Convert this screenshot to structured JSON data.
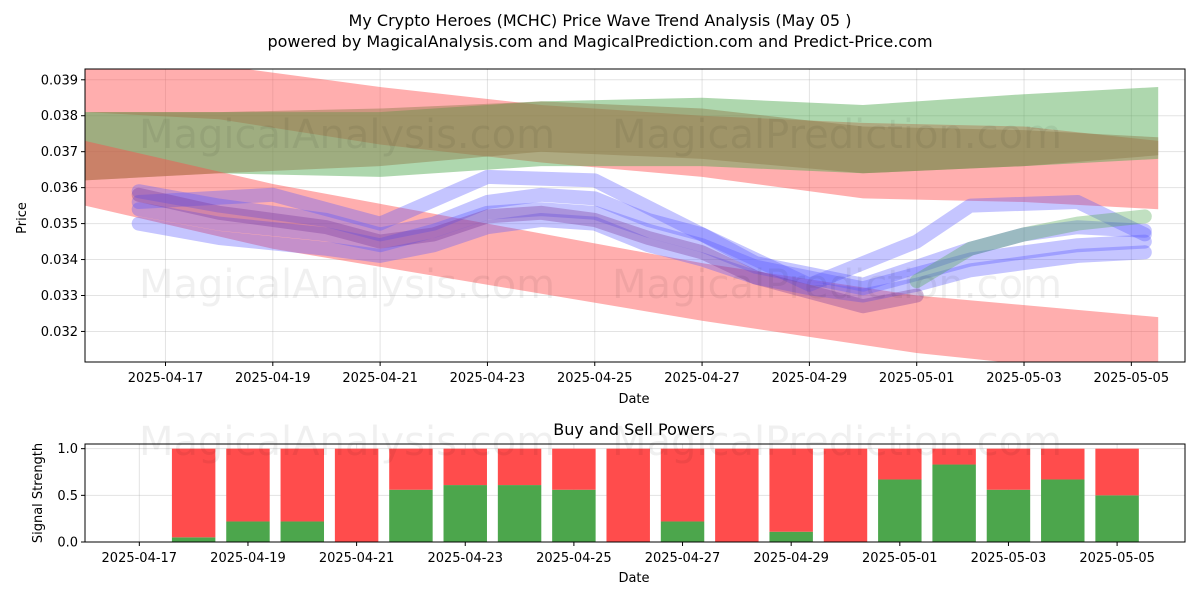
{
  "title_line1": "My Crypto Heroes (MCHC) Price Wave Trend Analysis (May 05 )",
  "title_line2": "powered by MagicalAnalysis.com and MagicalPrediction.com and Predict-Price.com",
  "watermarks": [
    "MagicalAnalysis.com",
    "MagicalPrediction.com"
  ],
  "colors": {
    "red": "#ff4c4c",
    "green": "#4ca64c",
    "blue": "#5a5aff",
    "purple": "#7a3a9a",
    "olive": "#8e7a4a"
  },
  "chart_data": [
    {
      "type": "line",
      "xlabel": "Date",
      "ylabel": "Price",
      "ylim": [
        0.03115,
        0.0393
      ],
      "xlim": [
        "2025-04-15T12:00",
        "2025-05-06T00:00"
      ],
      "yticks": [
        "0.032",
        "0.033",
        "0.034",
        "0.035",
        "0.036",
        "0.037",
        "0.038",
        "0.039"
      ],
      "xticks": [
        "2025-04-17",
        "2025-04-19",
        "2025-04-21",
        "2025-04-23",
        "2025-04-25",
        "2025-04-27",
        "2025-04-29",
        "2025-05-01",
        "2025-05-03",
        "2025-05-05"
      ],
      "grid": true,
      "bands": [
        {
          "color": "red",
          "x": [
            "2025-04-15T12:00",
            "2025-04-18",
            "2025-04-21",
            "2025-04-24",
            "2025-04-27",
            "2025-04-30",
            "2025-05-03",
            "2025-05-05T12:00"
          ],
          "upper": [
            0.0393,
            0.0394,
            0.0388,
            0.0383,
            0.038,
            0.0378,
            0.0377,
            0.0373
          ],
          "lower": [
            0.0381,
            0.0379,
            0.0372,
            0.0367,
            0.0363,
            0.0357,
            0.0356,
            0.0354
          ]
        },
        {
          "color": "green",
          "x": [
            "2025-04-15T12:00",
            "2025-04-18",
            "2025-04-21",
            "2025-04-24",
            "2025-04-27",
            "2025-04-30",
            "2025-05-03",
            "2025-05-05T12:00"
          ],
          "upper": [
            0.0381,
            0.0381,
            0.0381,
            0.0384,
            0.0385,
            0.0383,
            0.0386,
            0.0388
          ],
          "lower": [
            0.0362,
            0.0364,
            0.0363,
            0.0366,
            0.0366,
            0.0364,
            0.0366,
            0.0368
          ]
        },
        {
          "color": "olive",
          "x": [
            "2025-04-15T12:00",
            "2025-04-18",
            "2025-04-21",
            "2025-04-24",
            "2025-04-27",
            "2025-04-30",
            "2025-05-03",
            "2025-05-05T12:00"
          ],
          "upper": [
            0.0381,
            0.0381,
            0.0382,
            0.0384,
            0.0382,
            0.0377,
            0.0376,
            0.0374
          ],
          "lower": [
            0.0362,
            0.0364,
            0.0366,
            0.037,
            0.0368,
            0.0364,
            0.0366,
            0.0369
          ]
        },
        {
          "color": "red",
          "x": [
            "2025-04-15T12:00",
            "2025-04-19",
            "2025-04-23",
            "2025-04-27",
            "2025-05-01",
            "2025-05-05T12:00"
          ],
          "upper": [
            0.0373,
            0.0361,
            0.035,
            0.0339,
            0.033,
            0.0324
          ],
          "lower": [
            0.0355,
            0.0343,
            0.0333,
            0.0323,
            0.0314,
            0.0307
          ]
        }
      ],
      "series": [
        {
          "color": "blue",
          "x": [
            "2025-04-16T12:00",
            "2025-04-18",
            "2025-04-20",
            "2025-04-21",
            "2025-04-22",
            "2025-04-23",
            "2025-04-24",
            "2025-04-25",
            "2025-04-26",
            "2025-04-27",
            "2025-04-28",
            "2025-04-29",
            "2025-04-30",
            "2025-05-01",
            "2025-05-02",
            "2025-05-03",
            "2025-05-04",
            "2025-05-05T06:00"
          ],
          "y": [
            0.0354,
            0.035,
            0.0347,
            0.0344,
            0.0348,
            0.0353,
            0.0354,
            0.0353,
            0.0348,
            0.0344,
            0.0338,
            0.0335,
            0.0332,
            0.0336,
            0.034,
            0.0342,
            0.0344,
            0.0345
          ]
        },
        {
          "color": "blue",
          "x": [
            "2025-04-16T12:00",
            "2025-04-18",
            "2025-04-20",
            "2025-04-21",
            "2025-04-22",
            "2025-04-23",
            "2025-04-24",
            "2025-04-25",
            "2025-04-26",
            "2025-04-27",
            "2025-04-28",
            "2025-04-29",
            "2025-04-30",
            "2025-05-01",
            "2025-05-02",
            "2025-05-03",
            "2025-05-04",
            "2025-05-05T06:00"
          ],
          "y": [
            0.0359,
            0.0355,
            0.0351,
            0.0347,
            0.035,
            0.0356,
            0.0358,
            0.0357,
            0.0351,
            0.0347,
            0.0339,
            0.0336,
            0.0333,
            0.0338,
            0.0343,
            0.0347,
            0.0349,
            0.0348
          ]
        },
        {
          "color": "blue",
          "x": [
            "2025-04-16T12:00",
            "2025-04-18",
            "2025-04-20",
            "2025-04-21",
            "2025-04-22",
            "2025-04-23",
            "2025-04-24",
            "2025-04-25",
            "2025-04-26",
            "2025-04-27",
            "2025-04-28",
            "2025-04-29",
            "2025-04-30",
            "2025-05-01",
            "2025-05-02",
            "2025-05-03",
            "2025-05-04",
            "2025-05-05T06:00"
          ],
          "y": [
            0.035,
            0.0346,
            0.0343,
            0.0341,
            0.0344,
            0.0349,
            0.0351,
            0.035,
            0.0344,
            0.034,
            0.0335,
            0.0332,
            0.033,
            0.0333,
            0.0337,
            0.0339,
            0.0341,
            0.0342
          ]
        },
        {
          "color": "blue",
          "x": [
            "2025-04-16T12:00",
            "2025-04-19",
            "2025-04-21",
            "2025-04-23",
            "2025-04-25",
            "2025-04-27",
            "2025-04-29",
            "2025-05-01",
            "2025-05-02",
            "2025-05-04",
            "2025-05-05T06:00"
          ],
          "y": [
            0.0356,
            0.0358,
            0.035,
            0.0363,
            0.0362,
            0.0347,
            0.0333,
            0.0345,
            0.0355,
            0.0356,
            0.0347
          ]
        },
        {
          "color": "purple",
          "x": [
            "2025-04-16T12:00",
            "2025-04-18",
            "2025-04-20",
            "2025-04-21",
            "2025-04-22",
            "2025-04-23",
            "2025-04-24",
            "2025-04-25",
            "2025-04-26",
            "2025-04-27",
            "2025-04-28",
            "2025-04-29",
            "2025-04-30",
            "2025-05-01"
          ],
          "y": [
            0.0358,
            0.0353,
            0.0349,
            0.0345,
            0.0347,
            0.0352,
            0.0353,
            0.0351,
            0.0346,
            0.0342,
            0.0335,
            0.0331,
            0.0327,
            0.033
          ]
        },
        {
          "color": "green",
          "x": [
            "2025-05-01",
            "2025-05-02",
            "2025-05-03",
            "2025-05-04",
            "2025-05-05T06:00"
          ],
          "y": [
            0.0334,
            0.0343,
            0.0347,
            0.035,
            0.0352
          ]
        }
      ]
    },
    {
      "type": "bar",
      "title": "Buy and Sell Powers",
      "xlabel": "Date",
      "ylabel": "Signal Strength",
      "ylim": [
        0,
        1.05
      ],
      "yticks": [
        "0.0",
        "0.5",
        "1.0"
      ],
      "xticks": [
        "2025-04-17",
        "2025-04-19",
        "2025-04-21",
        "2025-04-23",
        "2025-04-25",
        "2025-04-27",
        "2025-04-29",
        "2025-05-01",
        "2025-05-03",
        "2025-05-05"
      ],
      "xlim": [
        "2025-04-16T00:00",
        "2025-05-06T06:00"
      ],
      "categories": [
        "2025-04-18",
        "2025-04-19",
        "2025-04-20",
        "2025-04-21",
        "2025-04-22",
        "2025-04-23",
        "2025-04-24",
        "2025-04-25",
        "2025-04-26",
        "2025-04-27",
        "2025-04-28",
        "2025-04-29",
        "2025-04-30",
        "2025-05-01",
        "2025-05-02",
        "2025-05-03",
        "2025-05-04",
        "2025-05-05"
      ],
      "series": [
        {
          "color": "green",
          "values": [
            0.05,
            0.22,
            0.22,
            0.0,
            0.56,
            0.61,
            0.61,
            0.56,
            0.0,
            0.22,
            0.0,
            0.11,
            0.0,
            0.67,
            0.83,
            0.56,
            0.67,
            0.5
          ]
        },
        {
          "color": "red",
          "values": [
            0.95,
            0.78,
            0.78,
            1.0,
            0.44,
            0.39,
            0.39,
            0.44,
            1.0,
            0.78,
            1.0,
            0.89,
            1.0,
            0.33,
            0.17,
            0.44,
            0.33,
            0.5
          ]
        }
      ]
    }
  ]
}
